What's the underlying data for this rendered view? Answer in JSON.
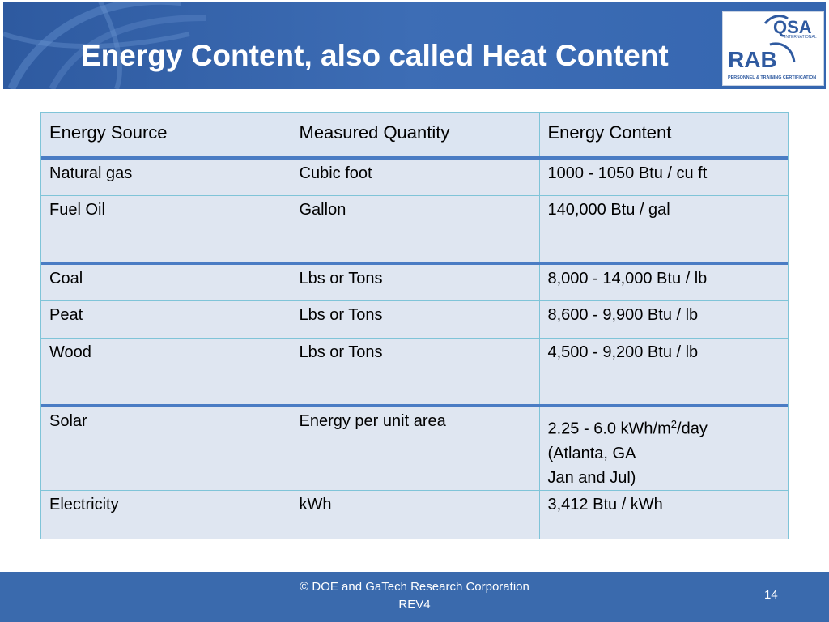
{
  "slide": {
    "title": "Energy Content, also called Heat Content",
    "logo_text": {
      "brand_top": "QSA",
      "brand_small": "INTERNATIONAL",
      "brand_main": "RAB",
      "tagline": "PERSONNEL & TRAINING CERTIFICATION"
    }
  },
  "table": {
    "headers": [
      "Energy Source",
      "Measured Quantity",
      "Energy Content"
    ],
    "rows": [
      {
        "source": "Natural gas",
        "quantity": "Cubic foot",
        "content": "1000 - 1050 Btu / cu ft"
      },
      {
        "source": "Fuel Oil",
        "quantity": "Gallon",
        "content": "140,000 Btu / gal"
      },
      {
        "source": "Coal",
        "quantity": "Lbs or Tons",
        "content": "8,000 - 14,000 Btu / lb"
      },
      {
        "source": "Peat",
        "quantity": "Lbs or Tons",
        "content": "8,600 - 9,900 Btu / lb"
      },
      {
        "source": "Wood",
        "quantity": "Lbs or Tons",
        "content": "4,500 - 9,200 Btu / lb"
      },
      {
        "source": "Solar",
        "quantity": "Energy per unit area",
        "content_line1_a": "2.25 - 6.0 kWh/m",
        "content_line1_sup": "2",
        "content_line1_b": "/day",
        "content_line2": "(Atlanta, GA",
        "content_line3": "Jan and Jul)"
      },
      {
        "source": "Electricity",
        "quantity": "kWh",
        "content": "3,412 Btu / kWh"
      }
    ]
  },
  "footer": {
    "copyright": "© DOE and GaTech Research Corporation",
    "revision": "REV4",
    "page_number": "14"
  },
  "colors": {
    "header_blue": "#3d6db5",
    "footer_blue": "#3a6aad",
    "cell_bg": "#dfe6f1",
    "separator_blue": "#4a7cc4",
    "grid_line": "#7fc4d8"
  }
}
